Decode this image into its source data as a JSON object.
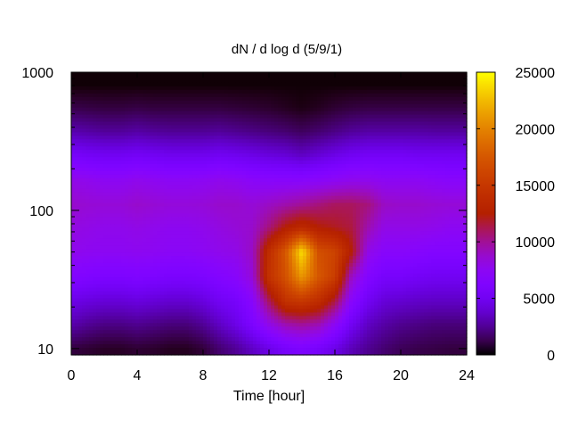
{
  "chart_data": {
    "type": "heatmap",
    "title": "dN / d log d (5/9/1)",
    "xlabel": "Time [hour]",
    "ylabel": "",
    "x_ticks": [
      0,
      4,
      8,
      12,
      16,
      20,
      24
    ],
    "y_ticks": [
      10,
      100,
      1000
    ],
    "y_scale": "log",
    "xlim": [
      0,
      24
    ],
    "ylim": [
      9,
      1000
    ],
    "colorbar": {
      "ticks": [
        0,
        5000,
        10000,
        15000,
        20000,
        25000
      ],
      "range": [
        0,
        25000
      ],
      "palette": "black-purple-red-orange-yellow"
    },
    "x": [
      0,
      1,
      2,
      3,
      4,
      5,
      6,
      7,
      8,
      9,
      10,
      11,
      12,
      13,
      14,
      15,
      16,
      17,
      18,
      19,
      20,
      21,
      22,
      23,
      24
    ],
    "y": [
      10,
      15,
      22,
      33,
      50,
      75,
      110,
      165,
      250,
      370,
      550,
      800
    ],
    "z": [
      [
        1000,
        800,
        600,
        600,
        800,
        700,
        500,
        500,
        900,
        1800,
        2500,
        3500,
        4500,
        5500,
        6000,
        5500,
        4500,
        3200,
        2400,
        1800,
        1400,
        1200,
        1100,
        1000,
        1000
      ],
      [
        3000,
        2500,
        2200,
        2200,
        2400,
        2200,
        2000,
        2000,
        2500,
        3500,
        4500,
        6000,
        8000,
        9500,
        10000,
        9500,
        7500,
        5000,
        3500,
        2800,
        2400,
        2200,
        2000,
        2000,
        2000
      ],
      [
        4500,
        4200,
        4000,
        4000,
        4200,
        4000,
        3800,
        3800,
        4200,
        5000,
        5500,
        7000,
        11000,
        14500,
        15000,
        14000,
        11500,
        7000,
        5000,
        4000,
        3800,
        3600,
        3500,
        3500,
        3500
      ],
      [
        6500,
        6200,
        6000,
        6000,
        6200,
        6000,
        5800,
        5800,
        6000,
        6500,
        7000,
        8500,
        14500,
        17000,
        21000,
        17500,
        15500,
        9000,
        6500,
        5500,
        5500,
        5200,
        5000,
        5000,
        5000
      ],
      [
        7800,
        7600,
        7500,
        7500,
        7600,
        7500,
        7300,
        7300,
        7500,
        7800,
        8000,
        9000,
        14000,
        17500,
        24000,
        17000,
        16000,
        12500,
        8000,
        7000,
        7000,
        6800,
        6500,
        6500,
        6500
      ],
      [
        8200,
        8000,
        7800,
        7800,
        8000,
        7800,
        7600,
        7600,
        7800,
        8200,
        8500,
        8800,
        10500,
        12500,
        13500,
        12500,
        12000,
        11500,
        9500,
        8000,
        8000,
        8000,
        7800,
        7500,
        7500
      ],
      [
        8800,
        8600,
        8500,
        8500,
        8800,
        8600,
        8400,
        8400,
        8500,
        8800,
        8800,
        8500,
        9000,
        9500,
        10000,
        10500,
        11000,
        11000,
        10500,
        9000,
        8800,
        8800,
        8600,
        8500,
        8500
      ],
      [
        8000,
        7800,
        7500,
        7500,
        7800,
        7600,
        7400,
        7400,
        7500,
        7800,
        7600,
        7200,
        7000,
        7000,
        7000,
        7200,
        7500,
        7800,
        7800,
        7500,
        7500,
        7500,
        7200,
        7000,
        7000
      ],
      [
        5500,
        5200,
        5000,
        5000,
        5200,
        5000,
        4800,
        4800,
        4800,
        5000,
        4800,
        4500,
        4200,
        4000,
        3500,
        4000,
        4500,
        5000,
        5200,
        5200,
        5200,
        5000,
        5000,
        5000,
        5000
      ],
      [
        3000,
        2800,
        2600,
        2600,
        2800,
        2600,
        2500,
        2500,
        2500,
        2600,
        2400,
        2200,
        2000,
        1800,
        1500,
        1800,
        2200,
        2600,
        2800,
        2800,
        2800,
        2800,
        2700,
        2700,
        2700
      ],
      [
        1200,
        1100,
        1000,
        1000,
        1100,
        1000,
        1000,
        1000,
        1000,
        1000,
        900,
        800,
        700,
        500,
        300,
        500,
        800,
        1000,
        1100,
        1100,
        1100,
        1100,
        1100,
        1100,
        1100
      ],
      [
        100,
        100,
        100,
        100,
        100,
        100,
        100,
        100,
        100,
        100,
        100,
        100,
        100,
        100,
        100,
        100,
        100,
        100,
        100,
        100,
        100,
        100,
        100,
        100,
        100
      ]
    ]
  }
}
